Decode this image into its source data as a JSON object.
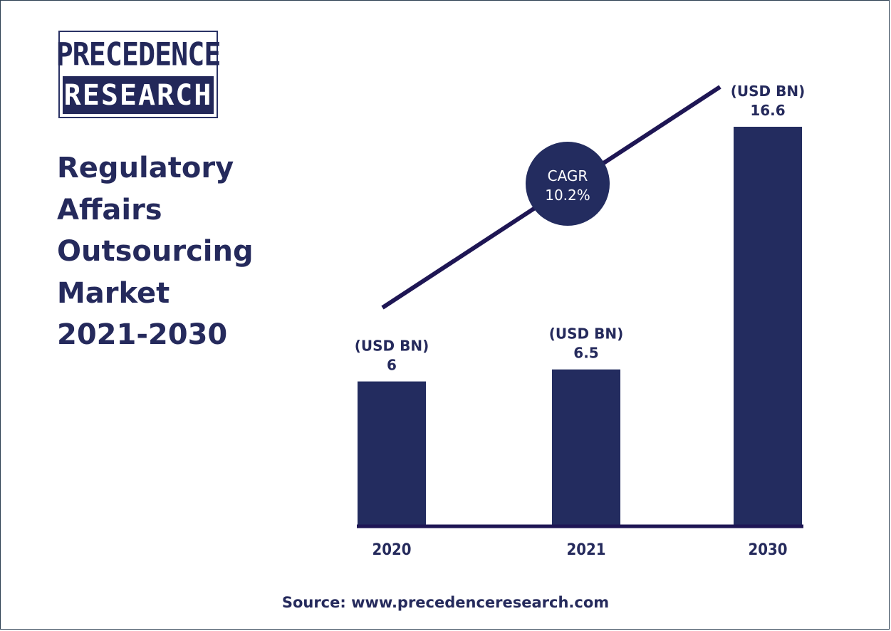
{
  "logo": {
    "line1": "PRECEDENCE",
    "line2": "RESEARCH"
  },
  "title_lines": [
    "Regulatory",
    "Affairs",
    "Outsourcing",
    "Market",
    "2021-2030"
  ],
  "cagr": {
    "label": "CAGR",
    "value": "10.2%"
  },
  "source": "Source: www.precedenceresearch.com",
  "colors": {
    "bar": "#232c5f",
    "text": "#252a5c",
    "line": "#1e1654",
    "circle": "#232c5f"
  },
  "chart_data": {
    "type": "bar",
    "categories": [
      "2020",
      "2021",
      "2030"
    ],
    "values": [
      6,
      6.5,
      16.6
    ],
    "value_labels": [
      "6",
      "6.5",
      "16.6"
    ],
    "unit_label": "(USD BN)",
    "title": "Regulatory Affairs Outsourcing Market 2021-2030",
    "xlabel": "",
    "ylabel": "",
    "grid": false
  }
}
